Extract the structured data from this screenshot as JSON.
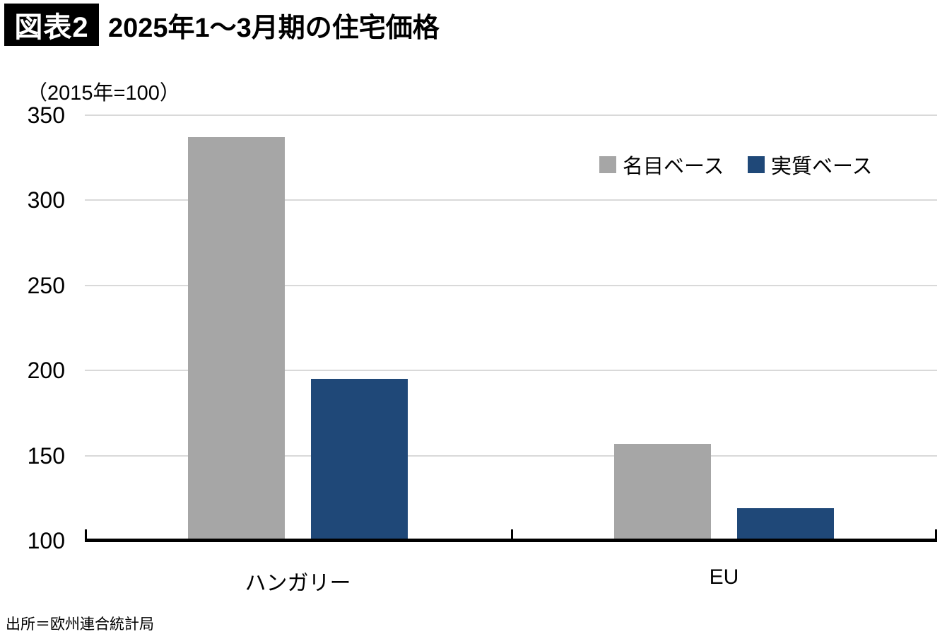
{
  "header": {
    "badge": "図表2",
    "title": "2025年1〜3月期の住宅価格"
  },
  "chart_data": {
    "type": "bar",
    "title": "2025年1〜3月期の住宅価格",
    "unit_label": "（2015年=100）",
    "categories": [
      "ハンガリー",
      "EU"
    ],
    "series": [
      {
        "name": "名目ベース",
        "color": "#a6a6a6",
        "values": [
          337,
          157
        ]
      },
      {
        "name": "実質ベース",
        "color": "#1f4878",
        "values": [
          195,
          119
        ]
      }
    ],
    "ylim": [
      100,
      350
    ],
    "yticks": [
      100,
      150,
      200,
      250,
      300,
      350
    ],
    "grid": true,
    "gridline_color": "#d9d9d9",
    "axis_color": "#000000",
    "legend_position": "top-right"
  },
  "source": "出所＝欧州連合統計局"
}
